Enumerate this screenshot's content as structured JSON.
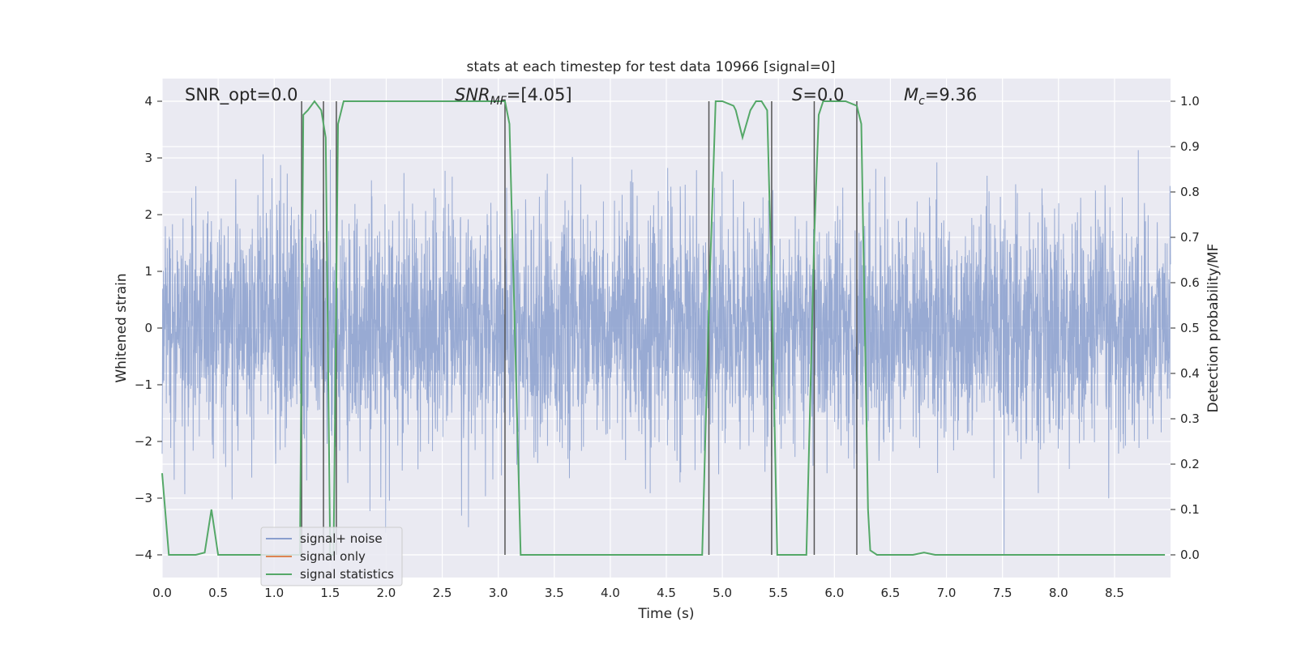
{
  "chart_data": {
    "type": "line",
    "title": "stats at each timestep for test data 10966 [signal=0]",
    "xlabel": "Time (s)",
    "ylabel": "Whitened strain",
    "y2label": "Detection probability/MF",
    "xlim": [
      0,
      9
    ],
    "ylim": [
      -4.4,
      4.4
    ],
    "y2lim": [
      -0.05,
      1.05
    ],
    "x_ticks": [
      0.0,
      0.5,
      1.0,
      1.5,
      2.0,
      2.5,
      3.0,
      3.5,
      4.0,
      4.5,
      5.0,
      5.5,
      6.0,
      6.5,
      7.0,
      7.5,
      8.0,
      8.5
    ],
    "x_tick_labels": [
      "0.0",
      "0.5",
      "1.0",
      "1.5",
      "2.0",
      "2.5",
      "3.0",
      "3.5",
      "4.0",
      "4.5",
      "5.0",
      "5.5",
      "6.0",
      "6.5",
      "7.0",
      "7.5",
      "8.0",
      "8.5"
    ],
    "y_ticks": [
      -4,
      -3,
      -2,
      -1,
      0,
      1,
      2,
      3,
      4
    ],
    "y_tick_labels": [
      "−4",
      "−3",
      "−2",
      "−1",
      "0",
      "1",
      "2",
      "3",
      "4"
    ],
    "y2_ticks": [
      0.0,
      0.1,
      0.2,
      0.3,
      0.4,
      0.5,
      0.6,
      0.7,
      0.8,
      0.9,
      1.0
    ],
    "y2_tick_labels": [
      "0.0",
      "0.1",
      "0.2",
      "0.3",
      "0.4",
      "0.5",
      "0.6",
      "0.7",
      "0.8",
      "0.9",
      "1.0"
    ],
    "grid": true,
    "legend_position": "lower-left",
    "annotations": {
      "snr_opt": "SNR_opt=0.0",
      "snr_mf_label": "SNR",
      "snr_mf_sub": "MF",
      "snr_mf_value": "=[4.05]",
      "s_label": "S",
      "s_value": "=0.0",
      "mc_label": "M",
      "mc_sub": "c",
      "mc_value": "=9.36"
    },
    "vlines": [
      1.245,
      1.44,
      1.555,
      3.06,
      4.88,
      5.44,
      5.82,
      6.2
    ],
    "vline_range": [
      -4,
      4
    ],
    "series": [
      {
        "name": "signal+ noise",
        "color": "#8a9fce",
        "style": "noise",
        "noise_profile": {
          "x_range": [
            0,
            9
          ],
          "samples": 4096,
          "sigma": 1.0,
          "clip": [
            -4,
            4
          ]
        }
      },
      {
        "name": "signal only",
        "color": "#dd8452",
        "values": []
      },
      {
        "name": "signal statistics",
        "color": "#55a868",
        "axis": "right",
        "x": [
          0.0,
          0.06,
          0.12,
          0.2,
          0.3,
          0.38,
          0.44,
          0.5,
          0.6,
          0.8,
          1.0,
          1.2,
          1.23,
          1.26,
          1.3,
          1.36,
          1.42,
          1.46,
          1.5,
          1.53,
          1.57,
          1.62,
          1.7,
          2.0,
          2.5,
          3.0,
          3.06,
          3.1,
          3.2,
          3.3,
          3.5,
          4.0,
          4.5,
          4.82,
          4.88,
          4.94,
          5.0,
          5.1,
          5.12,
          5.18,
          5.25,
          5.3,
          5.35,
          5.4,
          5.44,
          5.49,
          5.52,
          5.58,
          5.75,
          5.82,
          5.86,
          5.9,
          6.0,
          6.1,
          6.2,
          6.24,
          6.3,
          6.32,
          6.38,
          6.45,
          6.7,
          6.8,
          6.9,
          7.0,
          7.5,
          8.0,
          8.5,
          8.95
        ],
        "values": [
          0.18,
          0.0,
          0.0,
          0.0,
          0.0,
          0.005,
          0.1,
          0.0,
          0.0,
          0.0,
          0.0,
          0.0,
          0.0,
          0.97,
          0.98,
          1.0,
          0.98,
          0.92,
          0.0,
          0.0,
          0.95,
          1.0,
          1.0,
          1.0,
          1.0,
          1.0,
          1.0,
          0.95,
          0.0,
          0.0,
          0.0,
          0.0,
          0.0,
          0.0,
          0.55,
          1.0,
          1.0,
          0.99,
          0.98,
          0.92,
          0.98,
          1.0,
          1.0,
          0.98,
          0.6,
          0.0,
          0.0,
          0.0,
          0.0,
          0.7,
          0.97,
          1.0,
          1.0,
          1.0,
          0.99,
          0.95,
          0.1,
          0.01,
          0.0,
          0.0,
          0.0,
          0.005,
          0.0,
          0.0,
          0.0,
          0.0,
          0.0,
          0.0
        ]
      }
    ]
  }
}
